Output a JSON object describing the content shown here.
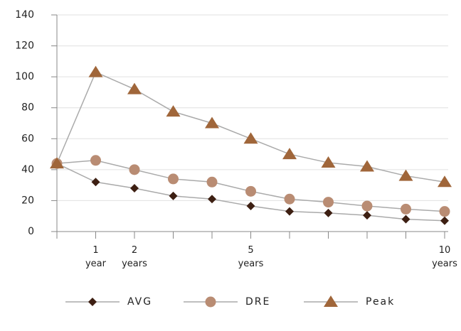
{
  "chart_data": {
    "type": "line",
    "categories": [
      null,
      "1\nyear",
      "2\nyears",
      null,
      null,
      "5\nyears",
      null,
      null,
      null,
      null,
      "10\nyears"
    ],
    "series": [
      {
        "name": "AVG",
        "color": "#3d1f12",
        "marker": "diamond",
        "values": [
          44,
          32,
          28,
          23,
          21,
          16.5,
          13,
          12,
          10.5,
          8,
          7
        ]
      },
      {
        "name": "DRE",
        "color": "#b98c73",
        "marker": "circle",
        "values": [
          44,
          46,
          40,
          34,
          32,
          26,
          21,
          19,
          16.5,
          14.5,
          13
        ]
      },
      {
        "name": "Peak",
        "color": "#a0663a",
        "marker": "triangle",
        "values": [
          44,
          103,
          92,
          77.5,
          70,
          60,
          50,
          44.5,
          42,
          36,
          32
        ]
      }
    ],
    "line_color": "#aaaaaa",
    "ylim": [
      0,
      140
    ],
    "yticks": [
      0,
      20,
      40,
      60,
      80,
      100,
      120,
      140
    ],
    "grid": true,
    "legend": "bottom"
  }
}
